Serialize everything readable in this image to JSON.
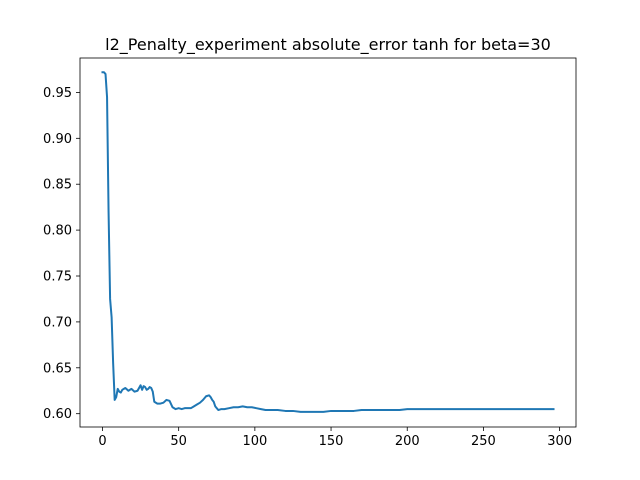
{
  "chart_data": {
    "type": "line",
    "title": "l2_Penalty_experiment absolute_error tanh for beta=30",
    "xlabel": "",
    "ylabel": "",
    "xlim": [
      -14.75,
      310.75
    ],
    "ylim": [
      0.5855,
      0.9875
    ],
    "x_ticks": [
      0,
      50,
      100,
      150,
      200,
      250,
      300
    ],
    "y_ticks": [
      0.6,
      0.65,
      0.7,
      0.75,
      0.8,
      0.85,
      0.9,
      0.95
    ],
    "y_tick_labels": [
      "0.60",
      "0.65",
      "0.70",
      "0.75",
      "0.80",
      "0.85",
      "0.90",
      "0.95"
    ],
    "grid": false,
    "line_color": "#1f77b4",
    "series": [
      {
        "x": [
          0,
          1,
          2,
          3,
          4,
          5,
          6,
          7,
          8,
          9,
          10,
          11,
          12,
          13,
          14,
          15,
          17,
          19,
          21,
          23,
          25,
          26,
          27,
          28,
          29,
          30,
          31,
          32,
          33,
          34,
          36,
          38,
          40,
          42,
          44,
          46,
          48,
          50,
          52,
          54,
          56,
          58,
          60,
          62,
          64,
          66,
          68,
          70,
          71,
          72,
          73,
          74,
          76,
          78,
          80,
          83,
          86,
          89,
          92,
          95,
          98,
          101,
          104,
          107,
          110,
          115,
          120,
          125,
          130,
          135,
          140,
          145,
          150,
          155,
          160,
          165,
          170,
          175,
          180,
          185,
          190,
          195,
          200,
          210,
          220,
          230,
          240,
          250,
          260,
          270,
          280,
          290,
          296
        ],
        "y": [
          0.972,
          0.972,
          0.97,
          0.945,
          0.82,
          0.725,
          0.705,
          0.655,
          0.615,
          0.618,
          0.627,
          0.624,
          0.623,
          0.626,
          0.627,
          0.628,
          0.625,
          0.627,
          0.624,
          0.625,
          0.631,
          0.626,
          0.63,
          0.629,
          0.626,
          0.627,
          0.629,
          0.628,
          0.624,
          0.613,
          0.611,
          0.611,
          0.612,
          0.615,
          0.614,
          0.607,
          0.605,
          0.606,
          0.605,
          0.606,
          0.606,
          0.606,
          0.608,
          0.61,
          0.612,
          0.615,
          0.619,
          0.62,
          0.618,
          0.615,
          0.613,
          0.608,
          0.604,
          0.605,
          0.605,
          0.606,
          0.607,
          0.607,
          0.608,
          0.607,
          0.607,
          0.606,
          0.605,
          0.604,
          0.604,
          0.604,
          0.603,
          0.603,
          0.602,
          0.602,
          0.602,
          0.602,
          0.603,
          0.603,
          0.603,
          0.603,
          0.604,
          0.604,
          0.604,
          0.604,
          0.604,
          0.604,
          0.605,
          0.605,
          0.605,
          0.605,
          0.605,
          0.605,
          0.605,
          0.605,
          0.605,
          0.605,
          0.605
        ]
      }
    ]
  }
}
